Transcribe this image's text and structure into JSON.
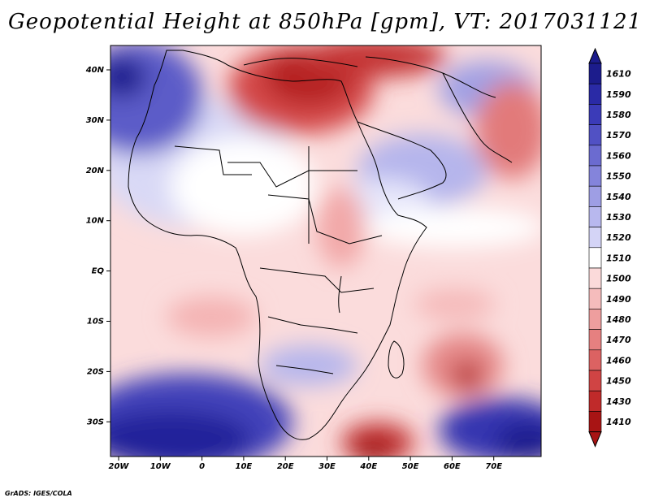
{
  "title": "Geopotential Height at 850hPa [gpm], VT: 2017031121",
  "credit": "GrADS: IGES/COLA",
  "map": {
    "lon_labels": [
      "20W",
      "10W",
      "0",
      "10E",
      "20E",
      "30E",
      "40E",
      "50E",
      "60E",
      "70E"
    ],
    "lat_labels": [
      "40N",
      "30N",
      "20N",
      "10N",
      "EQ",
      "10S",
      "20S",
      "30S"
    ]
  },
  "colorbar": {
    "levels": [
      "1610",
      "1590",
      "1580",
      "1570",
      "1560",
      "1550",
      "1540",
      "1530",
      "1520",
      "1510",
      "1500",
      "1490",
      "1480",
      "1470",
      "1460",
      "1450",
      "1430",
      "1410"
    ],
    "colors": [
      "#1c1c8c",
      "#2a2aa6",
      "#3b3bb8",
      "#5151c4",
      "#6b6bd0",
      "#8484db",
      "#9e9ee4",
      "#b8b8ee",
      "#d4d4f6",
      "#ffffff",
      "#fbdada",
      "#f5bcbc",
      "#ee9e9e",
      "#e68080",
      "#dc6262",
      "#d04444",
      "#c02a2a",
      "#a81414"
    ]
  }
}
